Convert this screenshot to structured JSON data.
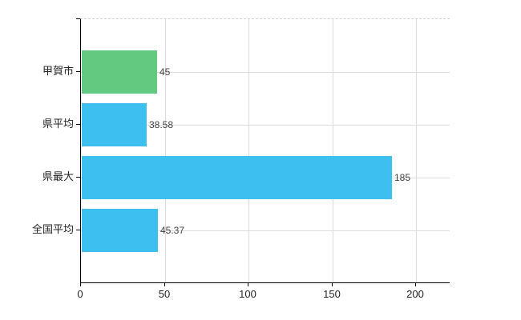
{
  "chart_data": {
    "type": "bar",
    "orientation": "horizontal",
    "title": "",
    "xlabel": "",
    "ylabel": "",
    "categories": [
      "甲賀市",
      "県平均",
      "県最大",
      "全国平均"
    ],
    "values": [
      45,
      38.58,
      185,
      45.37
    ],
    "value_labels": [
      "45",
      "38.58",
      "185",
      "45.37"
    ],
    "bar_colors": [
      "#63c981",
      "#3dbfef",
      "#3dbfef",
      "#3dbfef"
    ],
    "xlim": [
      0,
      220
    ],
    "x_ticks": [
      0,
      50,
      100,
      150,
      200
    ],
    "x_tick_labels": [
      "0",
      "50",
      "100",
      "150",
      "200"
    ],
    "grid": true,
    "legend": "none",
    "colors": {
      "gridline": "#dcdcdc",
      "axis": "#000000",
      "label_text": "#404040",
      "tick_text": "#222222",
      "plot_top_border": "#cfcfcf",
      "background": "#ffffff"
    }
  }
}
